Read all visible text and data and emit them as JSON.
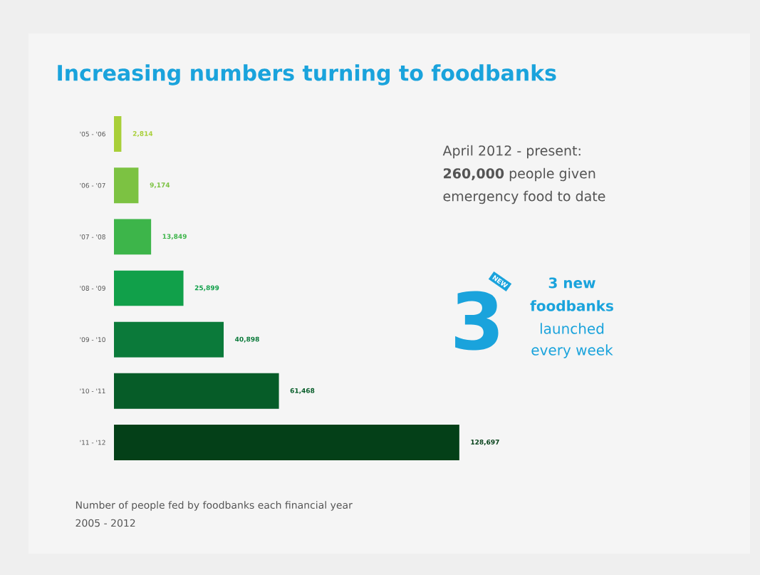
{
  "chart_data": {
    "type": "bar",
    "orientation": "horizontal",
    "title": "Increasing numbers turning to foodbanks",
    "categories": [
      "'05 - '06",
      "'06 - '07",
      "'07 - '08",
      "'08 - '09",
      "'09 - '10",
      "'10 - '11",
      "'11 - '12"
    ],
    "values": [
      2814,
      9174,
      13849,
      25899,
      40898,
      61468,
      128697
    ],
    "value_labels": [
      "2,814",
      "9,174",
      "13,849",
      "25,899",
      "40,898",
      "61,468",
      "128,697"
    ],
    "colors": [
      "#a8cf38",
      "#7cc242",
      "#3db54a",
      "#11a04a",
      "#0b7a3a",
      "#065c28",
      "#044018"
    ],
    "annotations": [
      "April 2012 - present:",
      "**260,000** people given",
      "emergency food to date",
      "3",
      "NEW",
      "**3 new**",
      "**foodbanks**",
      "launched",
      "every week",
      "Number of people fed by foodbanks each financial year",
      "2005 - 2012"
    ]
  }
}
